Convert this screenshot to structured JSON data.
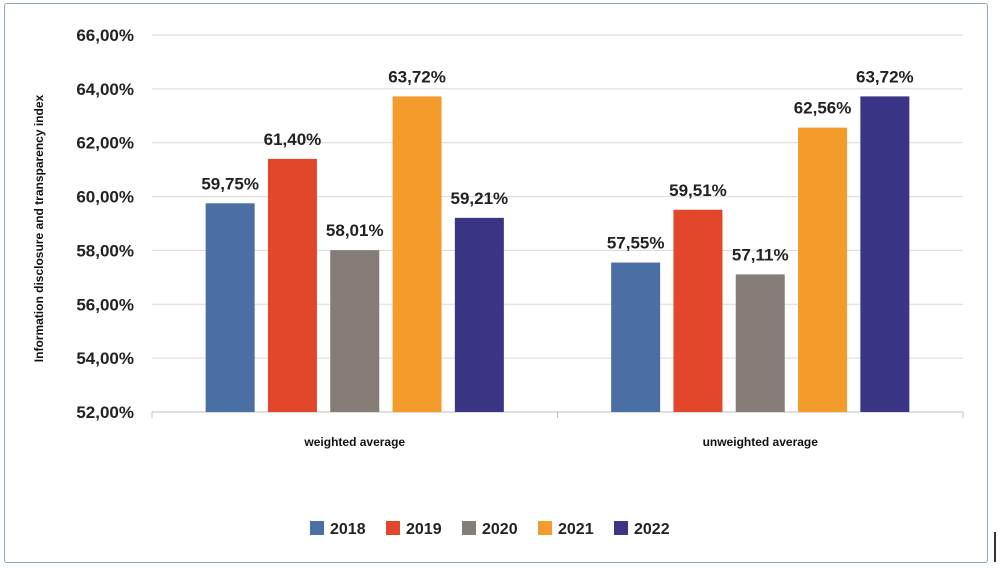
{
  "chart_data": {
    "type": "bar",
    "title": "",
    "xlabel": "",
    "ylabel": "Information disclosure and transparency index",
    "ylim": [
      52,
      66
    ],
    "yticks": [
      "52,00%",
      "54,00%",
      "56,00%",
      "58,00%",
      "60,00%",
      "62,00%",
      "64,00%",
      "66,00%"
    ],
    "categories": [
      "weighted average",
      "unweighted average"
    ],
    "grid": true,
    "legend_position": "bottom",
    "series": [
      {
        "name": "2018",
        "color": "#4a6fa5",
        "values": [
          59.75,
          57.55
        ],
        "labels": [
          "59,75%",
          "57,55%"
        ]
      },
      {
        "name": "2019",
        "color": "#e2462b",
        "values": [
          61.4,
          59.51
        ],
        "labels": [
          "61,40%",
          "59,51%"
        ]
      },
      {
        "name": "2020",
        "color": "#857c77",
        "values": [
          58.01,
          57.11
        ],
        "labels": [
          "58,01%",
          "57,11%"
        ]
      },
      {
        "name": "2021",
        "color": "#f39c2b",
        "values": [
          63.72,
          62.56
        ],
        "labels": [
          "63,72%",
          "62,56%"
        ]
      },
      {
        "name": "2022",
        "color": "#3b3586",
        "values": [
          59.21,
          63.72
        ],
        "labels": [
          "59,21%",
          "63,72%"
        ]
      }
    ]
  }
}
